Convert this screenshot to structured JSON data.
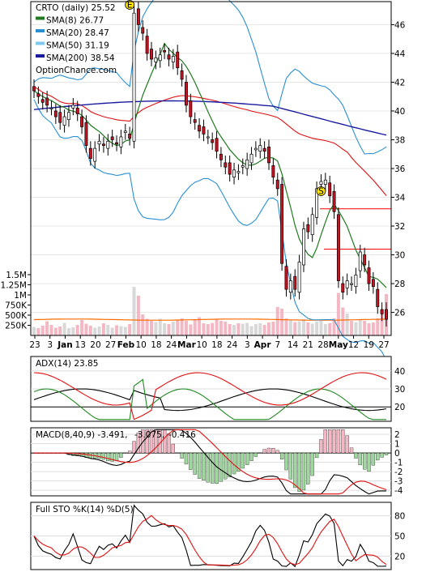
{
  "chart_data": [
    {
      "type": "candlestick",
      "panel": "price",
      "legend": [
        {
          "label": "CRTO (daily) 25.52",
          "color": "#000000"
        },
        {
          "label": "SMA(8) 26.77",
          "color": "#1f7a1f"
        },
        {
          "label": "SMA(20) 28.47",
          "color": "#2a8fd0"
        },
        {
          "label": "SMA(50) 31.19",
          "color": "#7fc8f0"
        },
        {
          "label": "SMA(200) 38.54",
          "color": "#1a1aa0"
        }
      ],
      "watermark": "OptionChance.com",
      "x_ticks": [
        "23",
        "3",
        "Jan",
        "13",
        "20",
        "27",
        "Feb",
        "10",
        "18",
        "24",
        "Mar",
        "10",
        "18",
        "24",
        "3",
        "Apr",
        "7",
        "14",
        "21",
        "28",
        "May",
        "12",
        "19",
        "27"
      ],
      "y_ticks": [
        26,
        28,
        30,
        32,
        34,
        36,
        38,
        40,
        42,
        44,
        46
      ],
      "ylim": [
        24.4,
        47.6
      ],
      "event_markers": [
        {
          "text": "E",
          "index": 22
        },
        {
          "text": "S",
          "index": 66
        }
      ],
      "closes": [
        41.4,
        41.0,
        40.6,
        40.4,
        40.2,
        39.6,
        39.2,
        39.6,
        39.9,
        40.4,
        39.8,
        38.9,
        37.6,
        36.7,
        37.4,
        37.9,
        37.6,
        37.9,
        38.0,
        37.7,
        38.2,
        38.6,
        38.1,
        46.8,
        46.0,
        45.4,
        44.0,
        43.6,
        43.7,
        43.9,
        44.1,
        43.6,
        43.8,
        43.0,
        42.2,
        40.4,
        39.6,
        39.2,
        38.6,
        38.4,
        38.2,
        37.8,
        37.2,
        36.6,
        36.1,
        35.6,
        35.9,
        35.8,
        36.2,
        36.6,
        37.0,
        37.4,
        37.6,
        37.2,
        36.4,
        35.4,
        34.6,
        29.4,
        27.6,
        28.2,
        27.6,
        29.5,
        31.8,
        31.6,
        32.8,
        34.6,
        35.1,
        35.2,
        34.1,
        33.0,
        28.2,
        27.4,
        28.2,
        28.0,
        28.6,
        30.2,
        29.3,
        28.0,
        27.8,
        26.4,
        25.9,
        25.52
      ],
      "volume": {
        "y_ticks": [
          "1.5M",
          "1.25M",
          "1M",
          "750K",
          "500K",
          "250K"
        ],
        "y_tick_values": [
          1500000,
          1250000,
          1000000,
          750000,
          500000,
          250000
        ],
        "ylim": [
          0,
          1680000
        ],
        "values": [
          210000,
          180000,
          240000,
          350000,
          260000,
          190000,
          220000,
          310000,
          180000,
          200000,
          260000,
          380000,
          290000,
          240000,
          190000,
          220000,
          300000,
          260000,
          190000,
          250000,
          230000,
          210000,
          280000,
          1200000,
          980000,
          520000,
          410000,
          360000,
          330000,
          410000,
          300000,
          280000,
          340000,
          380000,
          420000,
          360000,
          270000,
          390000,
          450000,
          300000,
          280000,
          310000,
          400000,
          360000,
          340000,
          280000,
          260000,
          300000,
          290000,
          310000,
          230000,
          280000,
          300000,
          260000,
          320000,
          340000,
          700000,
          660000,
          420000,
          380000,
          330000,
          350000,
          400000,
          320000,
          290000,
          340000,
          360000,
          280000,
          300000,
          420000,
          1050000,
          690000,
          540000,
          360000,
          330000,
          380000,
          360000,
          300000,
          320000,
          420000,
          620000,
          1020000
        ],
        "average_volume": 390000
      }
    },
    {
      "type": "line",
      "panel": "ADX",
      "title": "ADX(14) 23.85",
      "y_ticks": [
        20,
        30,
        40
      ],
      "ylim": [
        12,
        48
      ]
    },
    {
      "type": "line",
      "panel": "MACD",
      "title": "MACD(8,40,9) -3.491,",
      "value_labels": [
        {
          "text": "-3.075,",
          "color": "#ff0000"
        },
        {
          "text": "-0.416",
          "color": "#2244cc"
        }
      ],
      "y_ticks": [
        2,
        1,
        0,
        -1,
        -2,
        -3,
        -4
      ],
      "ylim": [
        -4.6,
        2.7
      ]
    },
    {
      "type": "line",
      "panel": "STO",
      "title": "Full STO %K(14) %D(5)",
      "y_ticks": [
        80,
        50,
        20
      ],
      "ylim": [
        0,
        100
      ]
    }
  ]
}
